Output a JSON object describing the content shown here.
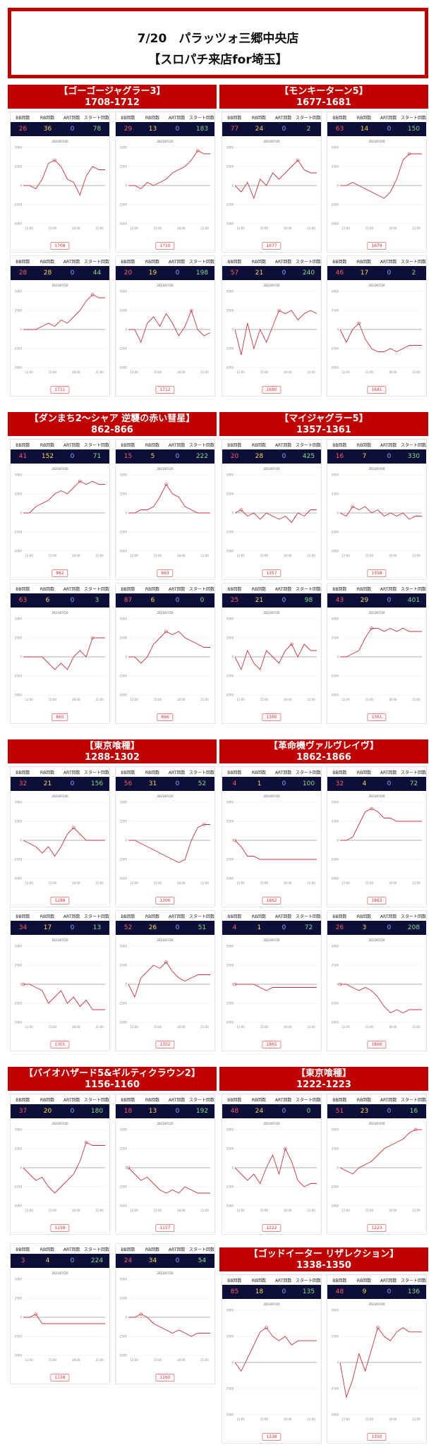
{
  "header": {
    "line1": "7/20　パラッツォ三郷中央店",
    "line2": "【スロパチ来店for埼玉】"
  },
  "labels": {
    "bb": "BB回数",
    "rb": "RB回数",
    "art": "ART回数",
    "start": "スタート回数",
    "date": "2023/07/20"
  },
  "axis": {
    "ticks": [
      "5000",
      "2500",
      "0",
      "-2500",
      "-5000"
    ],
    "times": [
      "12:00",
      "15:00",
      "18:00",
      "21:00"
    ]
  },
  "sections": [
    {
      "name": "【ゴーゴージャグラー3】",
      "range": "1708-1712",
      "cards": [
        {
          "bb": "26",
          "rb": "36",
          "art": "0",
          "start": "78",
          "num": "1708",
          "pts": [
            0,
            0,
            -0.05,
            0.1,
            0.35,
            0.4,
            0.3,
            0.1,
            0.05,
            -0.15,
            0.15,
            0.3,
            0.25,
            0.25
          ]
        },
        {
          "bb": "29",
          "rb": "13",
          "art": "0",
          "start": "183",
          "num": "1710",
          "pts": [
            0,
            0,
            -0.05,
            0.05,
            0,
            0.05,
            0.1,
            0.2,
            0.25,
            0.3,
            0.4,
            0.55,
            0.5,
            0.5
          ]
        },
        {
          "bb": "28",
          "rb": "28",
          "art": "0",
          "start": "44",
          "num": "1711",
          "pts": [
            0,
            0,
            0,
            0.05,
            0.1,
            0.05,
            0.15,
            0.1,
            0.2,
            0.3,
            0.45,
            0.55,
            0.5,
            0.5
          ]
        },
        {
          "bb": "20",
          "rb": "19",
          "art": "0",
          "start": "198",
          "num": "1712",
          "pts": [
            0,
            0,
            -0.2,
            0.1,
            0.2,
            0.05,
            0.25,
            0.1,
            -0.1,
            0.05,
            0.3,
            0,
            -0.1,
            -0.05
          ]
        }
      ]
    },
    {
      "name": "【モンキーターン5】",
      "range": "1677-1681",
      "cards": [
        {
          "bb": "77",
          "rb": "24",
          "art": "0",
          "start": "2",
          "num": "1677",
          "pts": [
            0,
            -0.1,
            0.05,
            -0.2,
            0.1,
            0,
            0.2,
            0.1,
            0.2,
            0.3,
            0.4,
            0.25,
            0.2,
            0.2
          ]
        },
        {
          "bb": "63",
          "rb": "14",
          "art": "0",
          "start": "150",
          "num": "1679",
          "pts": [
            0,
            0,
            0.05,
            0,
            -0.05,
            -0.1,
            -0.15,
            -0.2,
            -0.1,
            0.1,
            0.4,
            0.5,
            0.5,
            0.5
          ]
        },
        {
          "bb": "57",
          "rb": "21",
          "art": "0",
          "start": "240",
          "num": "1680",
          "pts": [
            0,
            -0.4,
            0.1,
            -0.3,
            0,
            -0.2,
            0.05,
            0.3,
            0.25,
            0.3,
            0.15,
            0.25,
            0.3,
            0.25
          ]
        },
        {
          "bb": "46",
          "rb": "17",
          "art": "0",
          "start": "2",
          "num": "1681",
          "pts": [
            0,
            -0.2,
            0,
            0.1,
            -0.15,
            -0.3,
            -0.35,
            -0.35,
            -0.3,
            -0.35,
            -0.3,
            -0.25,
            -0.25,
            -0.25
          ]
        }
      ]
    },
    {
      "name": "【ダンまち2～シャア 逆襲の赤い彗星】",
      "range": "862-866",
      "cards": [
        {
          "bb": "41",
          "rb": "152",
          "art": "0",
          "start": "71",
          "num": "862",
          "pts": [
            0,
            0,
            0.1,
            0.15,
            0.2,
            0.3,
            0.35,
            0.3,
            0.4,
            0.5,
            0.45,
            0.5,
            0.45,
            0.45
          ]
        },
        {
          "bb": "15",
          "rb": "5",
          "art": "0",
          "start": "222",
          "num": "863",
          "pts": [
            0,
            0,
            0.05,
            0.05,
            0.1,
            0.25,
            0.45,
            0.3,
            0.25,
            0.1,
            0.05,
            0,
            0,
            0
          ]
        },
        {
          "bb": "63",
          "rb": "6",
          "art": "0",
          "start": "3",
          "num": "865",
          "pts": [
            0,
            0,
            0,
            0,
            -0.1,
            -0.2,
            -0.1,
            -0.2,
            0,
            0.1,
            0,
            0.3,
            0.3,
            0.3
          ]
        },
        {
          "bb": "87",
          "rb": "6",
          "art": "0",
          "start": "0",
          "num": "866",
          "pts": [
            0,
            0,
            -0.1,
            0,
            0.2,
            0.3,
            0.4,
            0.35,
            0.4,
            0.3,
            0.25,
            0.2,
            0.15,
            0.15
          ]
        }
      ]
    },
    {
      "name": "【マイジャグラー5】",
      "range": "1357-1361",
      "cards": [
        {
          "bb": "20",
          "rb": "28",
          "art": "0",
          "start": "425",
          "num": "1357",
          "pts": [
            0,
            0.05,
            -0.05,
            0,
            -0.1,
            0,
            -0.05,
            -0.1,
            -0.05,
            -0.15,
            0,
            -0.05,
            0.05,
            0.05
          ]
        },
        {
          "bb": "16",
          "rb": "7",
          "art": "0",
          "start": "330",
          "num": "1358",
          "pts": [
            0,
            -0.05,
            0.1,
            0.05,
            0.1,
            0,
            0.05,
            -0.05,
            0,
            -0.05,
            0,
            -0.1,
            -0.05,
            -0.05
          ]
        },
        {
          "bb": "25",
          "rb": "21",
          "art": "0",
          "start": "98",
          "num": "1360",
          "pts": [
            0,
            -0.2,
            0.1,
            -0.1,
            -0.2,
            0.1,
            0,
            -0.1,
            0.1,
            0.2,
            0,
            0.2,
            0.1,
            0.1
          ]
        },
        {
          "bb": "43",
          "rb": "29",
          "art": "0",
          "start": "401",
          "num": "1361",
          "pts": [
            0,
            0,
            0.05,
            0.1,
            0.3,
            0.45,
            0.45,
            0.4,
            0.45,
            0.4,
            0.45,
            0.4,
            0.4,
            0.4
          ]
        }
      ]
    },
    {
      "name": "【東京喰種】",
      "range": "1288-1302",
      "cards": [
        {
          "bb": "32",
          "rb": "21",
          "art": "0",
          "start": "156",
          "num": "1288",
          "pts": [
            0,
            -0.05,
            -0.1,
            -0.2,
            -0.1,
            -0.25,
            -0.1,
            0.1,
            0.2,
            0.1,
            0,
            0,
            0,
            0
          ]
        },
        {
          "bb": "56",
          "rb": "31",
          "art": "0",
          "start": "52",
          "num": "1300",
          "pts": [
            0,
            0,
            -0.05,
            -0.1,
            -0.15,
            -0.2,
            -0.25,
            -0.3,
            -0.35,
            -0.3,
            0,
            0.2,
            0.25,
            0.25
          ]
        },
        {
          "bb": "34",
          "rb": "17",
          "art": "0",
          "start": "13",
          "num": "1301",
          "pts": [
            0,
            0,
            -0.05,
            -0.1,
            -0.3,
            -0.2,
            -0.1,
            -0.3,
            -0.2,
            -0.35,
            -0.25,
            -0.4,
            -0.4,
            -0.4
          ]
        },
        {
          "bb": "52",
          "rb": "26",
          "art": "0",
          "start": "51",
          "num": "1302",
          "pts": [
            0,
            -0.2,
            0.1,
            0.2,
            0.3,
            0.25,
            0.35,
            0.2,
            0.1,
            0.05,
            0.1,
            0.15,
            0.15,
            0.15
          ]
        }
      ]
    },
    {
      "name": "【革命機ヴァルヴレイヴ】",
      "range": "1862-1866",
      "cards": [
        {
          "bb": "4",
          "rb": "1",
          "art": "0",
          "start": "100",
          "num": "1862",
          "pts": [
            0,
            -0.1,
            -0.25,
            -0.25,
            -0.3,
            -0.3,
            -0.3,
            -0.3,
            -0.3,
            -0.3,
            -0.3,
            -0.3,
            -0.3,
            -0.3
          ]
        },
        {
          "bb": "32",
          "rb": "4",
          "art": "0",
          "start": "72",
          "num": "1863",
          "pts": [
            0,
            0,
            0.05,
            0.25,
            0.45,
            0.5,
            0.45,
            0.35,
            0.35,
            0.3,
            0.3,
            0.3,
            0.3,
            0.3
          ]
        },
        {
          "bb": "4",
          "rb": "1",
          "art": "0",
          "start": "72",
          "num": "1865",
          "pts": [
            0,
            0,
            0,
            0,
            -0.05,
            -0.1,
            -0.05,
            -0.05,
            -0.05,
            -0.05,
            -0.05,
            -0.05,
            -0.05,
            -0.05
          ]
        },
        {
          "bb": "26",
          "rb": "3",
          "art": "0",
          "start": "208",
          "num": "1866",
          "pts": [
            0,
            0,
            -0.05,
            -0.1,
            -0.05,
            -0.1,
            -0.2,
            -0.35,
            -0.45,
            -0.4,
            -0.45,
            -0.4,
            -0.4,
            -0.4
          ]
        }
      ]
    },
    {
      "name": "【バイオハザード5&ギルティクラウン2】",
      "range": "1156-1160",
      "cards": [
        {
          "bb": "37",
          "rb": "20",
          "art": "0",
          "start": "180",
          "num": "1156",
          "pts": [
            0,
            -0.1,
            -0.2,
            -0.15,
            -0.3,
            -0.4,
            -0.3,
            -0.2,
            -0.1,
            0.1,
            0.4,
            0.35,
            0.35,
            0.35
          ]
        },
        {
          "bb": "18",
          "rb": "13",
          "art": "0",
          "start": "192",
          "num": "1157",
          "pts": [
            0,
            -0.1,
            -0.2,
            -0.15,
            -0.25,
            -0.35,
            -0.4,
            -0.35,
            -0.4,
            -0.3,
            -0.35,
            -0.4,
            -0.4,
            -0.4
          ]
        },
        {
          "bb": "3",
          "rb": "4",
          "art": "0",
          "start": "224",
          "num": "1158",
          "pts": [
            0,
            0,
            0.05,
            -0.1,
            -0.1,
            -0.1,
            -0.1,
            -0.1,
            -0.1,
            -0.1,
            -0.1,
            -0.1,
            -0.1,
            -0.1
          ]
        },
        {
          "bb": "24",
          "rb": "34",
          "art": "0",
          "start": "54",
          "num": "1160",
          "pts": [
            0,
            0,
            0.05,
            0,
            -0.1,
            -0.15,
            -0.2,
            -0.25,
            -0.2,
            -0.25,
            -0.3,
            -0.25,
            -0.25,
            -0.25
          ]
        }
      ]
    },
    {
      "name": "【東京喰種】",
      "range": "1222-1223",
      "cards": [
        {
          "bb": "48",
          "rb": "24",
          "art": "0",
          "start": "0",
          "num": "1222",
          "pts": [
            0,
            -0.1,
            -0.2,
            -0.1,
            -0.25,
            0,
            0.2,
            -0.1,
            0.3,
            0.1,
            -0.2,
            -0.3,
            -0.25,
            -0.25
          ]
        },
        {
          "bb": "51",
          "rb": "23",
          "art": "0",
          "start": "16",
          "num": "1223",
          "pts": [
            0,
            -0.05,
            -0.1,
            0,
            0.05,
            0.1,
            0.2,
            0.3,
            0.35,
            0.4,
            0.45,
            0.55,
            0.6,
            0.6
          ]
        }
      ]
    },
    {
      "name": "【ゴッドイーター リザレクション】",
      "range": "1338-1350",
      "cards": [
        {
          "bb": "85",
          "rb": "18",
          "art": "0",
          "start": "135",
          "num": "1338",
          "pts": [
            0,
            -0.1,
            0.05,
            0.2,
            0.35,
            0.4,
            0.3,
            0.25,
            0.3,
            0.2,
            0.25,
            0.25,
            0.25,
            0.25
          ]
        },
        {
          "bb": "48",
          "rb": "9",
          "art": "0",
          "start": "136",
          "num": "1350",
          "pts": [
            0,
            -0.4,
            -0.2,
            0.1,
            -0.1,
            0.15,
            0.4,
            0.3,
            0.25,
            0.35,
            0.4,
            0.35,
            0.35,
            0.35
          ]
        }
      ]
    }
  ]
}
